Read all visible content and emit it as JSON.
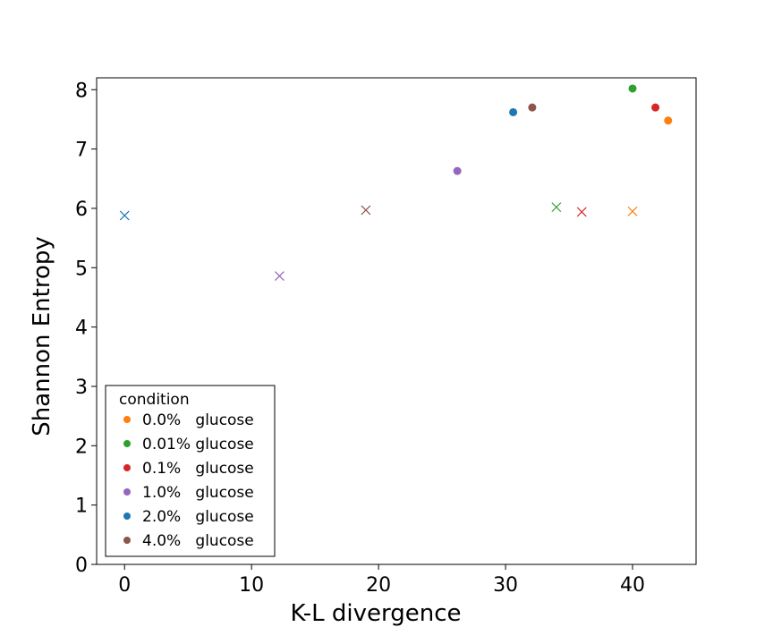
{
  "chart_data": {
    "type": "scatter",
    "xlabel": "K-L divergence",
    "ylabel": "Shannon Entropy",
    "xlim": [
      -2.2,
      45
    ],
    "ylim": [
      0,
      8.2
    ],
    "xticks": [
      0,
      10,
      20,
      30,
      40
    ],
    "yticks": [
      0,
      1,
      2,
      3,
      4,
      5,
      6,
      7,
      8
    ],
    "grid": false,
    "legend": {
      "title": "condition",
      "placement": "lower-left",
      "entries": [
        {
          "label": "0.0%   glucose",
          "color": "#ff7f0e"
        },
        {
          "label": "0.01% glucose",
          "color": "#2ca02c"
        },
        {
          "label": "0.1%   glucose",
          "color": "#d62728"
        },
        {
          "label": "1.0%   glucose",
          "color": "#9467bd"
        },
        {
          "label": "2.0%   glucose",
          "color": "#1f77b4"
        },
        {
          "label": "4.0%   glucose",
          "color": "#8c564b"
        }
      ]
    },
    "series": [
      {
        "color": "#ff7f0e",
        "points": [
          {
            "x": 42.8,
            "y": 7.48,
            "marker": "circle"
          },
          {
            "x": 40.0,
            "y": 5.95,
            "marker": "x"
          }
        ]
      },
      {
        "color": "#2ca02c",
        "points": [
          {
            "x": 40.0,
            "y": 8.02,
            "marker": "circle"
          },
          {
            "x": 34.0,
            "y": 6.02,
            "marker": "x"
          }
        ]
      },
      {
        "color": "#d62728",
        "points": [
          {
            "x": 41.8,
            "y": 7.7,
            "marker": "circle"
          },
          {
            "x": 36.0,
            "y": 5.94,
            "marker": "x"
          }
        ]
      },
      {
        "color": "#9467bd",
        "points": [
          {
            "x": 26.2,
            "y": 6.63,
            "marker": "circle"
          },
          {
            "x": 12.2,
            "y": 4.86,
            "marker": "x"
          }
        ]
      },
      {
        "color": "#1f77b4",
        "points": [
          {
            "x": 30.6,
            "y": 7.62,
            "marker": "circle"
          },
          {
            "x": 0.0,
            "y": 5.88,
            "marker": "x"
          }
        ]
      },
      {
        "color": "#8c564b",
        "points": [
          {
            "x": 32.1,
            "y": 7.7,
            "marker": "circle"
          },
          {
            "x": 19.0,
            "y": 5.97,
            "marker": "x"
          }
        ]
      }
    ]
  }
}
